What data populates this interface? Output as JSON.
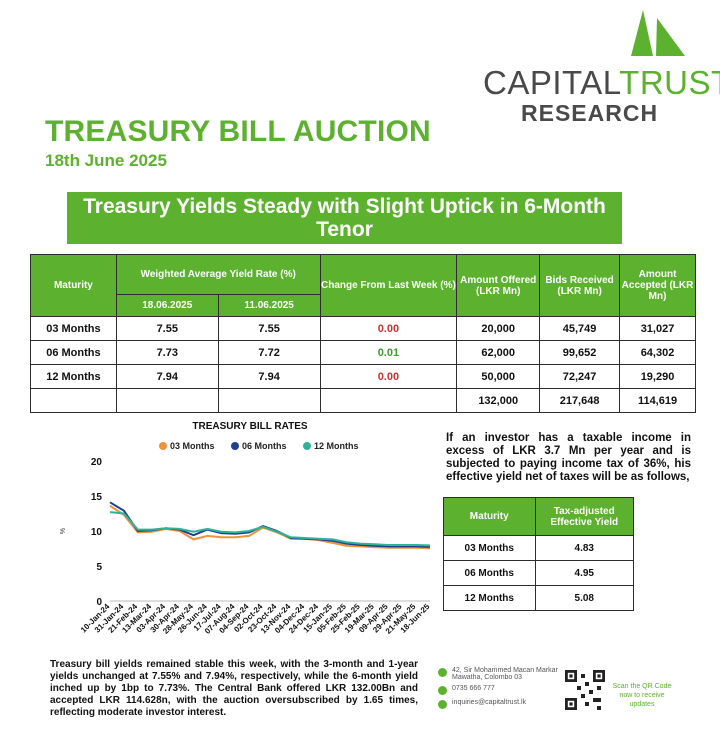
{
  "brand": {
    "name_part1": "CAPITAL",
    "name_part2": "TRUST",
    "sub": "RESEARCH",
    "color": "#5cb22e"
  },
  "title": "TREASURY BILL AUCTION",
  "date": "18th June 2025",
  "headline": "Treasury Yields Steady with Slight Uptick in 6-Month Tenor",
  "auction_table": {
    "headers": {
      "maturity": "Maturity",
      "wayr": "Weighted Average Yield Rate (%)",
      "date1": "18.06.2025",
      "date2": "11.06.2025",
      "change": "Change From Last Week (%)",
      "offered": "Amount Offered (LKR Mn)",
      "bids": "Bids Received (LKR Mn)",
      "accepted": "Amount Accepted (LKR Mn)"
    },
    "rows": [
      {
        "maturity": "03 Months",
        "y1": "7.55",
        "y2": "7.55",
        "change": "0.00",
        "offered": "20,000",
        "bids": "45,749",
        "accepted": "31,027"
      },
      {
        "maturity": "06 Months",
        "y1": "7.73",
        "y2": "7.72",
        "change": "0.01",
        "offered": "62,000",
        "bids": "99,652",
        "accepted": "64,302"
      },
      {
        "maturity": "12 Months",
        "y1": "7.94",
        "y2": "7.94",
        "change": "0.00",
        "offered": "50,000",
        "bids": "72,247",
        "accepted": "19,290"
      }
    ],
    "totals": {
      "offered": "132,000",
      "bids": "217,648",
      "accepted": "114,619"
    }
  },
  "chart_data": {
    "type": "line",
    "title": "TREASURY BILL RATES",
    "xlabel": "",
    "ylabel": "%",
    "ylim": [
      0,
      20
    ],
    "yticks": [
      0,
      5,
      10,
      15,
      20
    ],
    "legend_position": "top",
    "grid": false,
    "categories": [
      "10-Jan-24",
      "31-Jan-24",
      "21-Feb-24",
      "13-Mar-24",
      "03-Apr-24",
      "30-Apr-24",
      "28-May-24",
      "26-Jun-24",
      "17-Jul-24",
      "07-Aug-24",
      "04-Sep-24",
      "02-Oct-24",
      "23-Oct-24",
      "13-Nov-24",
      "04-Dec-24",
      "24-Dec-24",
      "15-Jan-25",
      "05-Feb-25",
      "25-Feb-25",
      "19-Mar-25",
      "09-Apr-25",
      "29-Apr-25",
      "21-May-25",
      "18-Jun-25"
    ],
    "series": [
      {
        "name": "03 Months",
        "color": "#f0923a",
        "values": [
          13.6,
          12.3,
          9.8,
          9.9,
          10.3,
          10.0,
          8.8,
          9.3,
          9.1,
          9.1,
          9.3,
          10.5,
          9.8,
          8.9,
          8.9,
          8.7,
          8.3,
          7.9,
          7.8,
          7.7,
          7.6,
          7.6,
          7.6,
          7.55
        ]
      },
      {
        "name": "06 Months",
        "color": "#1f3f8f",
        "values": [
          14.1,
          12.9,
          10.0,
          10.1,
          10.4,
          10.2,
          9.4,
          10.2,
          9.7,
          9.6,
          9.8,
          10.7,
          10.0,
          9.0,
          8.9,
          8.8,
          8.6,
          8.2,
          8.0,
          7.9,
          7.8,
          7.8,
          7.8,
          7.73
        ]
      },
      {
        "name": "12 Months",
        "color": "#2eb398",
        "values": [
          12.7,
          12.5,
          10.2,
          10.2,
          10.4,
          10.3,
          9.9,
          10.3,
          9.9,
          9.8,
          10.0,
          10.6,
          9.9,
          9.1,
          9.0,
          8.9,
          8.8,
          8.4,
          8.2,
          8.1,
          8.0,
          8.0,
          8.0,
          7.94
        ]
      }
    ]
  },
  "side_text": "If an investor has a taxable income in excess of LKR 3.7 Mn per year and is subjected to paying income tax of 36%, his effective yield net of taxes will be as follows,",
  "tax_table": {
    "headers": {
      "maturity": "Maturity",
      "yield": "Tax-adjusted Effective Yield"
    },
    "rows": [
      {
        "maturity": "03 Months",
        "yield": "4.83"
      },
      {
        "maturity": "06 Months",
        "yield": "4.95"
      },
      {
        "maturity": "12 Months",
        "yield": "5.08"
      }
    ]
  },
  "summary": "Treasury bill yields remained stable this week, with the 3-month and 1-year yields unchanged at 7.55% and 7.94%, respectively, while the 6-month yield inched up by 1bp to 7.73%. The Central Bank offered LKR 132.00Bn and accepted LKR 114.628n, with the auction oversubscribed by 1.65 times, reflecting moderate investor interest.",
  "contact": {
    "address": "42, Sir Mohammed Macan Markar Mawatha, Colombo 03",
    "phone": "0735 666 777",
    "email": "inquiries@capitaltrust.lk",
    "qr_text": "Scan the QR Code now to receive updates"
  }
}
